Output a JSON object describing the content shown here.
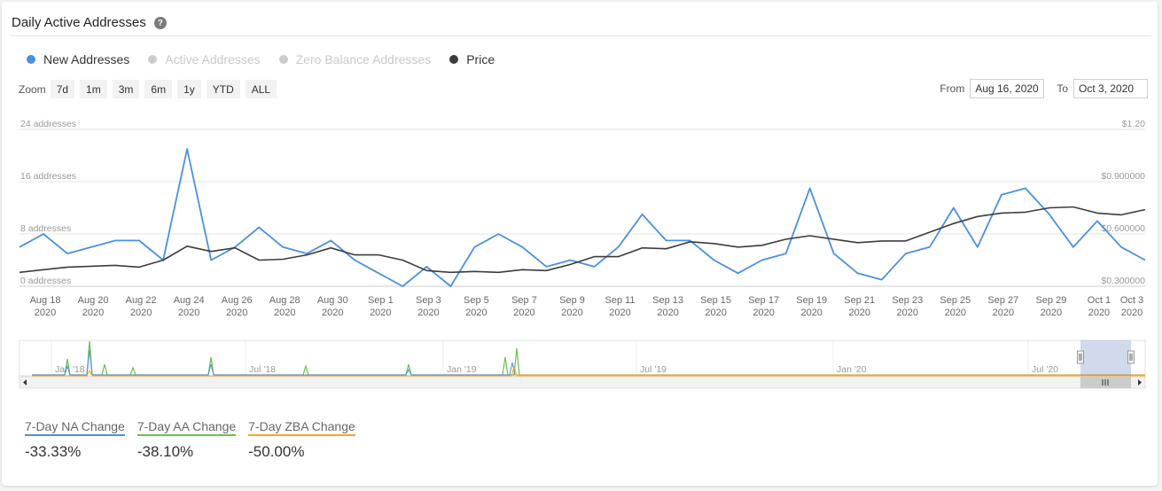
{
  "title": "Daily Active Addresses",
  "legend": [
    {
      "label": "New Addresses",
      "color": "#4a90e2",
      "active": true
    },
    {
      "label": "Active Addresses",
      "color": "#cccccc",
      "active": false
    },
    {
      "label": "Zero Balance Addresses",
      "color": "#cccccc",
      "active": false
    },
    {
      "label": "Price",
      "color": "#3c3c3c",
      "active": true
    }
  ],
  "zoom": {
    "label": "Zoom",
    "buttons": [
      "7d",
      "1m",
      "3m",
      "6m",
      "1y",
      "YTD",
      "ALL"
    ]
  },
  "range": {
    "from_label": "From",
    "from_value": "Aug 16, 2020",
    "to_label": "To",
    "to_value": "Oct 3, 2020"
  },
  "chart_data": {
    "type": "line",
    "y_left": {
      "ticks": [
        "0 addresses",
        "8 addresses",
        "16 addresses",
        "24 addresses"
      ],
      "ylim": [
        0,
        24
      ]
    },
    "y_right": {
      "ticks": [
        "$0.300000",
        "$0.600000",
        "$0.900000",
        "$1.20"
      ],
      "ylim": [
        0.3,
        1.2
      ]
    },
    "x_ticks": [
      [
        "Aug 18",
        "2020"
      ],
      [
        "Aug 20",
        "2020"
      ],
      [
        "Aug 22",
        "2020"
      ],
      [
        "Aug 24",
        "2020"
      ],
      [
        "Aug 26",
        "2020"
      ],
      [
        "Aug 28",
        "2020"
      ],
      [
        "Aug 30",
        "2020"
      ],
      [
        "Sep 1",
        "2020"
      ],
      [
        "Sep 3",
        "2020"
      ],
      [
        "Sep 5",
        "2020"
      ],
      [
        "Sep 7",
        "2020"
      ],
      [
        "Sep 9",
        "2020"
      ],
      [
        "Sep 11",
        "2020"
      ],
      [
        "Sep 13",
        "2020"
      ],
      [
        "Sep 15",
        "2020"
      ],
      [
        "Sep 17",
        "2020"
      ],
      [
        "Sep 19",
        "2020"
      ],
      [
        "Sep 21",
        "2020"
      ],
      [
        "Sep 23",
        "2020"
      ],
      [
        "Sep 25",
        "2020"
      ],
      [
        "Sep 27",
        "2020"
      ],
      [
        "Sep 29",
        "2020"
      ],
      [
        "Oct 1",
        "2020"
      ],
      [
        "Oct 3",
        "2020"
      ]
    ],
    "series": [
      {
        "name": "New Addresses",
        "color": "#4a90e2",
        "axis": "left",
        "values": [
          6,
          8,
          5,
          6,
          7,
          7,
          4,
          21,
          4,
          6,
          9,
          6,
          5,
          7,
          4,
          2,
          0,
          3,
          0,
          6,
          8,
          6,
          3,
          4,
          3,
          6,
          11,
          7,
          7,
          4,
          2,
          4,
          5,
          15,
          5,
          2,
          1,
          5,
          6,
          12,
          6,
          14,
          15,
          11,
          6,
          10,
          6,
          4
        ]
      },
      {
        "name": "Price",
        "color": "#3c3c3c",
        "axis": "right",
        "values": [
          0.38,
          0.395,
          0.41,
          0.415,
          0.42,
          0.41,
          0.45,
          0.53,
          0.5,
          0.52,
          0.45,
          0.455,
          0.48,
          0.52,
          0.48,
          0.48,
          0.45,
          0.39,
          0.38,
          0.385,
          0.38,
          0.395,
          0.39,
          0.425,
          0.47,
          0.47,
          0.52,
          0.515,
          0.555,
          0.545,
          0.525,
          0.535,
          0.57,
          0.59,
          0.57,
          0.55,
          0.56,
          0.56,
          0.61,
          0.66,
          0.7,
          0.72,
          0.725,
          0.75,
          0.755,
          0.72,
          0.71,
          0.74
        ]
      }
    ]
  },
  "navigator": {
    "labels": [
      "Jan '18",
      "Jul '18",
      "Jan '19",
      "Jul '19",
      "Jan '20",
      "Jul '20"
    ]
  },
  "stats": [
    {
      "label": "7-Day NA Change",
      "value": "-33.33%",
      "color": "#4a90e2"
    },
    {
      "label": "7-Day AA Change",
      "value": "-38.10%",
      "color": "#6cc04a"
    },
    {
      "label": "7-Day ZBA Change",
      "value": "-50.00%",
      "color": "#f5a623"
    }
  ]
}
